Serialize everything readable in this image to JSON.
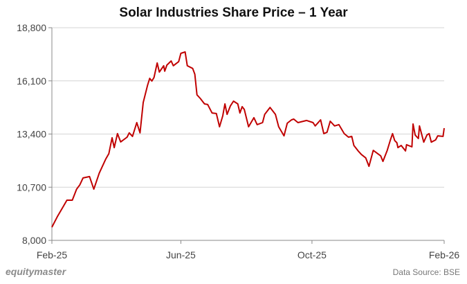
{
  "chart_data": {
    "type": "line",
    "title": "Solar Industries Share Price – 1 Year",
    "xlabel": "",
    "ylabel": "",
    "ylim": [
      8000,
      18800
    ],
    "xlim": [
      "2025-02-01",
      "2026-02-01"
    ],
    "y_ticks": [
      "8,000",
      "10,700",
      "13,400",
      "16,100",
      "18,800"
    ],
    "x_ticks": [
      {
        "label": "Feb-25",
        "date": "2025-02-01"
      },
      {
        "label": "Jun-25",
        "date": "2025-06-01"
      },
      {
        "label": "Oct-25",
        "date": "2025-10-01"
      },
      {
        "label": "Feb-26",
        "date": "2026-02-01"
      }
    ],
    "grid": "horizontal",
    "line_color": "#c00000",
    "series": [
      {
        "points": [
          [
            "2025-02-01",
            8670
          ],
          [
            "2025-02-06",
            9200
          ],
          [
            "2025-02-12",
            9760
          ],
          [
            "2025-02-15",
            10040
          ],
          [
            "2025-02-20",
            10040
          ],
          [
            "2025-02-24",
            10600
          ],
          [
            "2025-02-27",
            10820
          ],
          [
            "2025-03-02",
            11170
          ],
          [
            "2025-03-08",
            11240
          ],
          [
            "2025-03-12",
            10600
          ],
          [
            "2025-03-17",
            11410
          ],
          [
            "2025-03-23",
            12120
          ],
          [
            "2025-03-26",
            12400
          ],
          [
            "2025-03-29",
            13210
          ],
          [
            "2025-03-31",
            12710
          ],
          [
            "2025-04-03",
            13420
          ],
          [
            "2025-04-06",
            13000
          ],
          [
            "2025-04-12",
            13240
          ],
          [
            "2025-04-14",
            13460
          ],
          [
            "2025-04-17",
            13280
          ],
          [
            "2025-04-21",
            13980
          ],
          [
            "2025-04-24",
            13460
          ],
          [
            "2025-04-27",
            15000
          ],
          [
            "2025-05-01",
            15880
          ],
          [
            "2025-05-03",
            16230
          ],
          [
            "2025-05-05",
            16090
          ],
          [
            "2025-05-07",
            16270
          ],
          [
            "2025-05-10",
            17010
          ],
          [
            "2025-05-12",
            16550
          ],
          [
            "2025-05-16",
            16870
          ],
          [
            "2025-05-17",
            16590
          ],
          [
            "2025-05-19",
            16900
          ],
          [
            "2025-05-23",
            17110
          ],
          [
            "2025-05-25",
            16870
          ],
          [
            "2025-05-30",
            17080
          ],
          [
            "2025-06-01",
            17500
          ],
          [
            "2025-06-05",
            17570
          ],
          [
            "2025-06-07",
            16870
          ],
          [
            "2025-06-12",
            16730
          ],
          [
            "2025-06-14",
            16440
          ],
          [
            "2025-06-16",
            15390
          ],
          [
            "2025-06-19",
            15210
          ],
          [
            "2025-06-23",
            14930
          ],
          [
            "2025-06-26",
            14900
          ],
          [
            "2025-06-30",
            14470
          ],
          [
            "2025-07-04",
            14440
          ],
          [
            "2025-07-07",
            13770
          ],
          [
            "2025-07-10",
            14330
          ],
          [
            "2025-07-12",
            14930
          ],
          [
            "2025-07-14",
            14400
          ],
          [
            "2025-07-17",
            14820
          ],
          [
            "2025-07-20",
            15070
          ],
          [
            "2025-07-24",
            14930
          ],
          [
            "2025-07-26",
            14470
          ],
          [
            "2025-07-28",
            14790
          ],
          [
            "2025-07-30",
            14650
          ],
          [
            "2025-08-03",
            13770
          ],
          [
            "2025-08-08",
            14230
          ],
          [
            "2025-08-11",
            13880
          ],
          [
            "2025-08-16",
            13980
          ],
          [
            "2025-08-18",
            14400
          ],
          [
            "2025-08-23",
            14750
          ],
          [
            "2025-08-28",
            14400
          ],
          [
            "2025-08-31",
            13770
          ],
          [
            "2025-09-05",
            13310
          ],
          [
            "2025-09-08",
            13950
          ],
          [
            "2025-09-12",
            14120
          ],
          [
            "2025-09-14",
            14160
          ],
          [
            "2025-09-18",
            13980
          ],
          [
            "2025-09-26",
            14090
          ],
          [
            "2025-10-02",
            13980
          ],
          [
            "2025-10-04",
            13810
          ],
          [
            "2025-10-09",
            14120
          ],
          [
            "2025-10-12",
            13420
          ],
          [
            "2025-10-15",
            13490
          ],
          [
            "2025-10-18",
            14050
          ],
          [
            "2025-10-22",
            13810
          ],
          [
            "2025-10-26",
            13880
          ],
          [
            "2025-10-31",
            13420
          ],
          [
            "2025-11-04",
            13240
          ],
          [
            "2025-11-07",
            13280
          ],
          [
            "2025-11-09",
            12820
          ],
          [
            "2025-11-13",
            12540
          ],
          [
            "2025-11-16",
            12360
          ],
          [
            "2025-11-20",
            12190
          ],
          [
            "2025-11-23",
            11760
          ],
          [
            "2025-11-27",
            12570
          ],
          [
            "2025-12-04",
            12290
          ],
          [
            "2025-12-06",
            12010
          ],
          [
            "2025-12-10",
            12570
          ],
          [
            "2025-12-13",
            13100
          ],
          [
            "2025-12-15",
            13420
          ],
          [
            "2025-12-17",
            13070
          ],
          [
            "2025-12-19",
            12960
          ],
          [
            "2025-12-20",
            12710
          ],
          [
            "2025-12-23",
            12820
          ],
          [
            "2025-12-27",
            12540
          ],
          [
            "2025-12-28",
            12860
          ],
          [
            "2026-01-02",
            12750
          ],
          [
            "2026-01-03",
            13910
          ],
          [
            "2026-01-05",
            13350
          ],
          [
            "2026-01-08",
            13170
          ],
          [
            "2026-01-09",
            13810
          ],
          [
            "2026-01-13",
            12990
          ],
          [
            "2026-01-16",
            13350
          ],
          [
            "2026-01-18",
            13420
          ],
          [
            "2026-01-20",
            12990
          ],
          [
            "2026-01-24",
            13100
          ],
          [
            "2026-01-26",
            13310
          ],
          [
            "2026-01-31",
            13280
          ],
          [
            "2026-02-01",
            13700
          ]
        ]
      }
    ]
  },
  "footer": {
    "logo": "equitymaster",
    "source": "Data Source: BSE"
  }
}
